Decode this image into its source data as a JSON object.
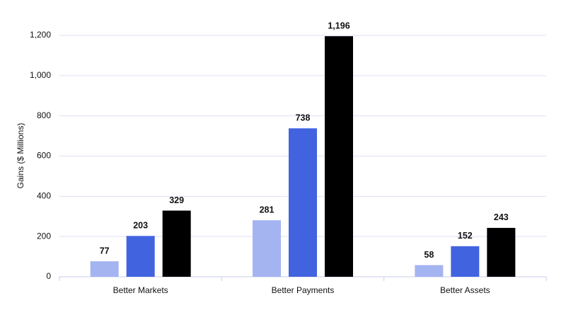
{
  "chart_data": {
    "type": "bar",
    "y_label": "Gains ($ Millions)",
    "categories": [
      "Better Markets",
      "Better Payments",
      "Better Assets"
    ],
    "series": [
      {
        "color": "#a4b4f1",
        "values": [
          77,
          281,
          58
        ]
      },
      {
        "color": "#4263e0",
        "values": [
          203,
          738,
          152
        ]
      },
      {
        "color": "#000000",
        "values": [
          329,
          1196,
          243
        ],
        "value_labels": [
          "329",
          "1,196",
          "243"
        ]
      }
    ],
    "ylim": [
      0,
      1200
    ],
    "yticks": [
      0,
      200,
      400,
      600,
      800,
      {
        "value": 1000,
        "label": "1,000"
      },
      {
        "value": 1200,
        "label": "1,200"
      }
    ],
    "grid": true
  }
}
